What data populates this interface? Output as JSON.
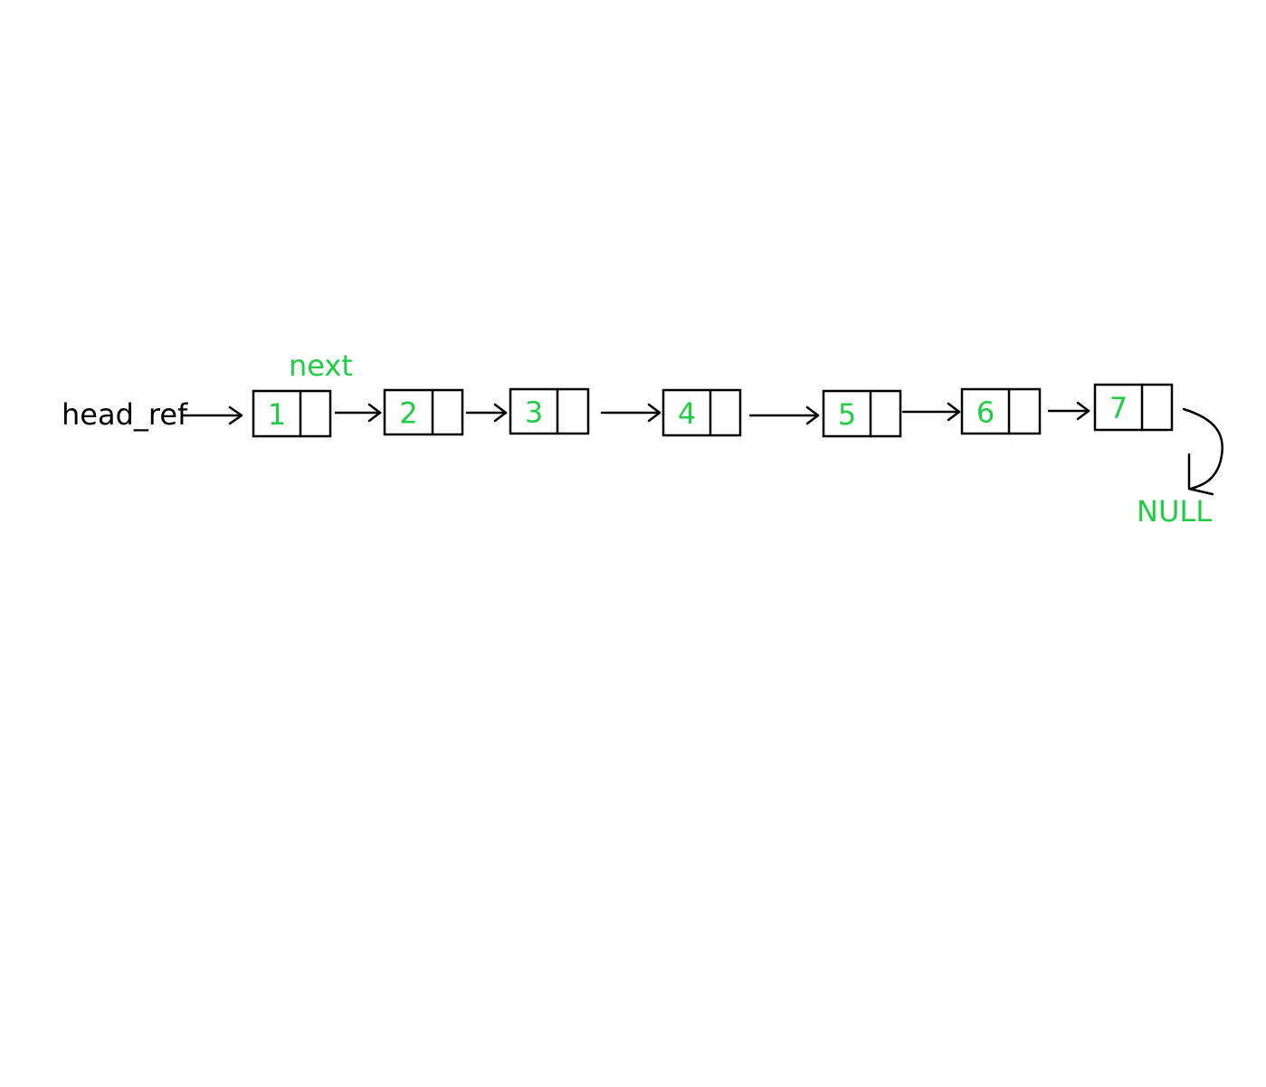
{
  "labels": {
    "head": "head_ref",
    "next": "next",
    "null": "NULL"
  },
  "nodes": [
    {
      "value": "1"
    },
    {
      "value": "2"
    },
    {
      "value": "3"
    },
    {
      "value": "4"
    },
    {
      "value": "5"
    },
    {
      "value": "6"
    },
    {
      "value": "7"
    }
  ],
  "colors": {
    "accent": "#22cc44",
    "ink": "#000000"
  }
}
